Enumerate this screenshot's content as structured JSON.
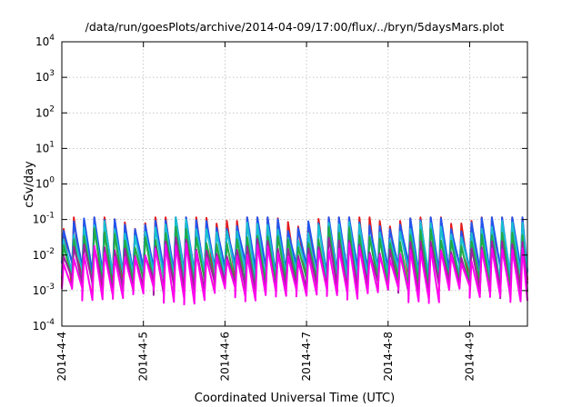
{
  "chart_data": {
    "type": "line",
    "title": "/data/run/goesPlots/archive/2014-04-09/17:00/flux/../bryn/5daysMars.plot",
    "xlabel": "Coordinated Universal Time (UTC)",
    "ylabel": "cSv/day",
    "y_scale": "log",
    "ylim": [
      0.0001,
      10000
    ],
    "y_ticks": [
      {
        "base": "10",
        "exp": "-4",
        "value": 0.0001
      },
      {
        "base": "10",
        "exp": "-3",
        "value": 0.001
      },
      {
        "base": "10",
        "exp": "-2",
        "value": 0.01
      },
      {
        "base": "10",
        "exp": "-1",
        "value": 0.1
      },
      {
        "base": "10",
        "exp": "0",
        "value": 1
      },
      {
        "base": "10",
        "exp": "1",
        "value": 10
      },
      {
        "base": "10",
        "exp": "2",
        "value": 100
      },
      {
        "base": "10",
        "exp": "3",
        "value": 1000
      },
      {
        "base": "10",
        "exp": "4",
        "value": 10000
      }
    ],
    "x_ticks": [
      "2014-4-4",
      "2014-4-5",
      "2014-4-6",
      "2014-4-7",
      "2014-4-8",
      "2014-4-9"
    ],
    "xlim": [
      "2014-04-04 00:00",
      "2014-04-09 17:00"
    ],
    "grid": true,
    "legend": "none",
    "cycle_hours": 3,
    "series": [
      {
        "color": "#e3191c",
        "peak": 0.1,
        "trough": 0.0015
      },
      {
        "color": "#2255ee",
        "peak": 0.08,
        "trough": 0.004
      },
      {
        "color": "#19c0d0",
        "peak": 0.05,
        "trough": 0.0025
      },
      {
        "color": "#22aa44",
        "peak": 0.03,
        "trough": 0.0015
      },
      {
        "color": "#a020a0",
        "peak": 0.015,
        "trough": 0.0012
      },
      {
        "color": "#ff00ee",
        "peak": 0.01,
        "trough": 0.0008
      }
    ]
  }
}
